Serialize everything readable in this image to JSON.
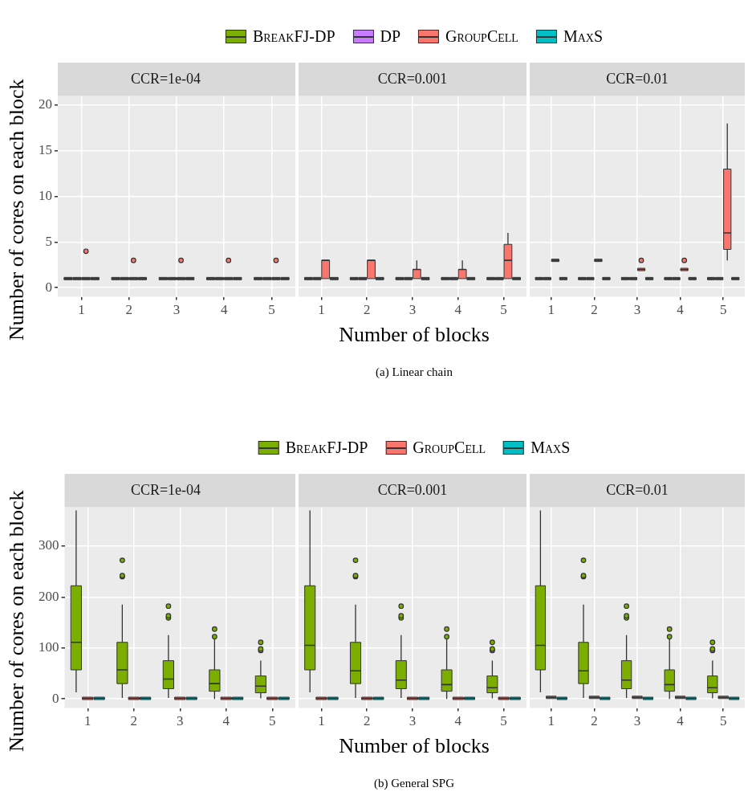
{
  "chart_data": [
    {
      "type": "box",
      "title": "CCR=1e-04",
      "ylabel": "Number of cores on each block",
      "categories": [
        "1",
        "2",
        "3",
        "4",
        "5"
      ],
      "ylim": [
        -1,
        21
      ],
      "yticks": [
        0,
        5,
        10,
        15,
        20
      ],
      "grid": true,
      "legend": false,
      "series": [
        {
          "color": "#7cae00",
          "boxes": [
            {
              "low": 1,
              "q1": 1,
              "median": 1,
              "q3": 1,
              "high": 1
            },
            {
              "low": 1,
              "q1": 1,
              "median": 1,
              "q3": 1,
              "high": 1
            },
            {
              "low": 1,
              "q1": 1,
              "median": 1,
              "q3": 1,
              "high": 1
            },
            {
              "low": 1,
              "q1": 1,
              "median": 1,
              "q3": 1,
              "high": 1
            },
            {
              "low": 1,
              "q1": 1,
              "median": 1,
              "q3": 1,
              "high": 1
            }
          ]
        },
        {
          "color": "#c77cff",
          "boxes": [
            {
              "low": 1,
              "q1": 1,
              "median": 1,
              "q3": 1,
              "high": 1
            },
            {
              "low": 1,
              "q1": 1,
              "median": 1,
              "q3": 1,
              "high": 1
            },
            {
              "low": 1,
              "q1": 1,
              "median": 1,
              "q3": 1,
              "high": 1
            },
            {
              "low": 1,
              "q1": 1,
              "median": 1,
              "q3": 1,
              "high": 1
            },
            {
              "low": 1,
              "q1": 1,
              "median": 1,
              "q3": 1,
              "high": 1
            }
          ]
        },
        {
          "color": "#f8766d",
          "boxes": [
            {
              "low": 1,
              "q1": 1,
              "median": 1,
              "q3": 1,
              "high": 1,
              "outliers": [
                4
              ]
            },
            {
              "low": 1,
              "q1": 1,
              "median": 1,
              "q3": 1,
              "high": 1,
              "outliers": [
                3
              ]
            },
            {
              "low": 1,
              "q1": 1,
              "median": 1,
              "q3": 1,
              "high": 1,
              "outliers": [
                3
              ]
            },
            {
              "low": 1,
              "q1": 1,
              "median": 1,
              "q3": 1,
              "high": 1,
              "outliers": [
                3
              ]
            },
            {
              "low": 1,
              "q1": 1,
              "median": 1,
              "q3": 1,
              "high": 1,
              "outliers": [
                3
              ]
            }
          ]
        },
        {
          "color": "#00bfc4",
          "boxes": [
            {
              "low": 1,
              "q1": 1,
              "median": 1,
              "q3": 1,
              "high": 1
            },
            {
              "low": 1,
              "q1": 1,
              "median": 1,
              "q3": 1,
              "high": 1
            },
            {
              "low": 1,
              "q1": 1,
              "median": 1,
              "q3": 1,
              "high": 1
            },
            {
              "low": 1,
              "q1": 1,
              "median": 1,
              "q3": 1,
              "high": 1
            },
            {
              "low": 1,
              "q1": 1,
              "median": 1,
              "q3": 1,
              "high": 1
            }
          ]
        }
      ]
    },
    {
      "type": "box",
      "title": "CCR=0.001",
      "xlabel": "Number of blocks",
      "annotations": [
        "(a) Linear chain"
      ],
      "categories": [
        "1",
        "2",
        "3",
        "4",
        "5"
      ],
      "ylim": [
        -1,
        21
      ],
      "yticks": [
        0,
        5,
        10,
        15,
        20
      ],
      "grid": true,
      "legend": "top",
      "tick_labels": "x",
      "series": [
        {
          "name": "BreakFJ-DP",
          "color": "#7cae00",
          "boxes": [
            {
              "low": 1,
              "q1": 1,
              "median": 1,
              "q3": 1,
              "high": 1
            },
            {
              "low": 1,
              "q1": 1,
              "median": 1,
              "q3": 1,
              "high": 1
            },
            {
              "low": 1,
              "q1": 1,
              "median": 1,
              "q3": 1,
              "high": 1
            },
            {
              "low": 1,
              "q1": 1,
              "median": 1,
              "q3": 1,
              "high": 1
            },
            {
              "low": 1,
              "q1": 1,
              "median": 1,
              "q3": 1,
              "high": 1
            }
          ]
        },
        {
          "name": "DP",
          "color": "#c77cff",
          "boxes": [
            {
              "low": 1,
              "q1": 1,
              "median": 1,
              "q3": 1,
              "high": 1
            },
            {
              "low": 1,
              "q1": 1,
              "median": 1,
              "q3": 1,
              "high": 1
            },
            {
              "low": 1,
              "q1": 1,
              "median": 1,
              "q3": 1,
              "high": 1
            },
            {
              "low": 1,
              "q1": 1,
              "median": 1,
              "q3": 1,
              "high": 1
            },
            {
              "low": 1,
              "q1": 1,
              "median": 1,
              "q3": 1,
              "high": 1
            }
          ]
        },
        {
          "name": "GroupCell",
          "color": "#f8766d",
          "boxes": [
            {
              "low": 1,
              "q1": 1,
              "median": 3,
              "q3": 3,
              "high": 3
            },
            {
              "low": 1,
              "q1": 1,
              "median": 3,
              "q3": 3,
              "high": 3
            },
            {
              "low": 1,
              "q1": 1,
              "median": 2,
              "q3": 2,
              "high": 3
            },
            {
              "low": 1,
              "q1": 1,
              "median": 2,
              "q3": 2,
              "high": 3
            },
            {
              "low": 1,
              "q1": 1,
              "median": 3,
              "q3": 4.75,
              "high": 6
            }
          ]
        },
        {
          "name": "MaxS",
          "color": "#00bfc4",
          "boxes": [
            {
              "low": 1,
              "q1": 1,
              "median": 1,
              "q3": 1,
              "high": 1
            },
            {
              "low": 1,
              "q1": 1,
              "median": 1,
              "q3": 1,
              "high": 1
            },
            {
              "low": 1,
              "q1": 1,
              "median": 1,
              "q3": 1,
              "high": 1
            },
            {
              "low": 1,
              "q1": 1,
              "median": 1,
              "q3": 1,
              "high": 1
            },
            {
              "low": 1,
              "q1": 1,
              "median": 1,
              "q3": 1,
              "high": 1
            }
          ]
        }
      ]
    },
    {
      "type": "box",
      "title": "CCR=0.01",
      "categories": [
        "1",
        "2",
        "3",
        "4",
        "5"
      ],
      "ylim": [
        -1,
        21
      ],
      "yticks": [
        0,
        5,
        10,
        15,
        20
      ],
      "grid": true,
      "legend": false,
      "tick_labels": "x",
      "series": [
        {
          "color": "#7cae00",
          "boxes": [
            {
              "low": 1,
              "q1": 1,
              "median": 1,
              "q3": 1,
              "high": 1
            },
            {
              "low": 1,
              "q1": 1,
              "median": 1,
              "q3": 1,
              "high": 1
            },
            {
              "low": 1,
              "q1": 1,
              "median": 1,
              "q3": 1,
              "high": 1
            },
            {
              "low": 1,
              "q1": 1,
              "median": 1,
              "q3": 1,
              "high": 1
            },
            {
              "low": 1,
              "q1": 1,
              "median": 1,
              "q3": 1,
              "high": 1
            }
          ]
        },
        {
          "color": "#c77cff",
          "boxes": [
            {
              "low": 1,
              "q1": 1,
              "median": 1,
              "q3": 1,
              "high": 1
            },
            {
              "low": 1,
              "q1": 1,
              "median": 1,
              "q3": 1,
              "high": 1
            },
            {
              "low": 1,
              "q1": 1,
              "median": 1,
              "q3": 1,
              "high": 1
            },
            {
              "low": 1,
              "q1": 1,
              "median": 1,
              "q3": 1,
              "high": 1
            },
            {
              "low": 1,
              "q1": 1,
              "median": 1,
              "q3": 1,
              "high": 1
            }
          ]
        },
        {
          "color": "#f8766d",
          "boxes": [
            {
              "low": 3,
              "q1": 3,
              "median": 3,
              "q3": 3,
              "high": 3
            },
            {
              "low": 3,
              "q1": 3,
              "median": 3,
              "q3": 3,
              "high": 3
            },
            {
              "low": 2,
              "q1": 2,
              "median": 2,
              "q3": 2,
              "high": 2,
              "outliers": [
                3
              ]
            },
            {
              "low": 2,
              "q1": 2,
              "median": 2,
              "q3": 2,
              "high": 2,
              "outliers": [
                3
              ]
            },
            {
              "low": 3,
              "q1": 4.2,
              "median": 6,
              "q3": 13,
              "high": 18
            }
          ]
        },
        {
          "color": "#00bfc4",
          "boxes": [
            {
              "low": 1,
              "q1": 1,
              "median": 1,
              "q3": 1,
              "high": 1
            },
            {
              "low": 1,
              "q1": 1,
              "median": 1,
              "q3": 1,
              "high": 1
            },
            {
              "low": 1,
              "q1": 1,
              "median": 1,
              "q3": 1,
              "high": 1
            },
            {
              "low": 1,
              "q1": 1,
              "median": 1,
              "q3": 1,
              "high": 1
            },
            {
              "low": 1,
              "q1": 1,
              "median": 1,
              "q3": 1,
              "high": 1
            }
          ]
        }
      ]
    },
    {
      "type": "box",
      "title": "CCR=1e-04",
      "ylabel": "Number of cores on each block",
      "categories": [
        "1",
        "2",
        "3",
        "4",
        "5"
      ],
      "ylim": [
        -18,
        376
      ],
      "yticks": [
        0,
        100,
        200,
        300
      ],
      "grid": true,
      "legend": false,
      "series": [
        {
          "color": "#7cae00",
          "boxes": [
            {
              "low": 13,
              "q1": 57,
              "median": 111,
              "q3": 222,
              "high": 370
            },
            {
              "low": 2,
              "q1": 30,
              "median": 57,
              "q3": 111,
              "high": 185,
              "outliers": [
                240,
                242,
                272
              ]
            },
            {
              "low": 2,
              "q1": 20,
              "median": 39,
              "q3": 75,
              "high": 125,
              "outliers": [
                159,
                163,
                182
              ]
            },
            {
              "low": 0,
              "q1": 15,
              "median": 30,
              "q3": 57,
              "high": 119,
              "outliers": [
                122,
                137
              ]
            },
            {
              "low": 1,
              "q1": 12,
              "median": 25,
              "q3": 45,
              "high": 75,
              "outliers": [
                95,
                98,
                111
              ]
            }
          ]
        },
        {
          "color": "#f8766d",
          "boxes": [
            {
              "low": 1,
              "q1": 1,
              "median": 1,
              "q3": 1,
              "high": 1
            },
            {
              "low": 1,
              "q1": 1,
              "median": 1,
              "q3": 1,
              "high": 1
            },
            {
              "low": 1,
              "q1": 1,
              "median": 1,
              "q3": 1,
              "high": 1
            },
            {
              "low": 1,
              "q1": 1,
              "median": 1,
              "q3": 1,
              "high": 1
            },
            {
              "low": 1,
              "q1": 1,
              "median": 1,
              "q3": 1,
              "high": 1
            }
          ]
        },
        {
          "color": "#00bfc4",
          "boxes": [
            {
              "low": 1,
              "q1": 1,
              "median": 1,
              "q3": 1,
              "high": 1
            },
            {
              "low": 1,
              "q1": 1,
              "median": 1,
              "q3": 1,
              "high": 1
            },
            {
              "low": 1,
              "q1": 1,
              "median": 1,
              "q3": 1,
              "high": 1
            },
            {
              "low": 1,
              "q1": 1,
              "median": 1,
              "q3": 1,
              "high": 1
            },
            {
              "low": 1,
              "q1": 1,
              "median": 1,
              "q3": 1,
              "high": 1
            }
          ]
        }
      ]
    },
    {
      "type": "box",
      "title": "CCR=0.001",
      "xlabel": "Number of blocks",
      "annotations": [
        "(b) General SPG"
      ],
      "categories": [
        "1",
        "2",
        "3",
        "4",
        "5"
      ],
      "ylim": [
        -18,
        376
      ],
      "yticks": [
        0,
        100,
        200,
        300
      ],
      "grid": true,
      "legend": "top",
      "tick_labels": "x",
      "series": [
        {
          "name": "BreakFJ-DP",
          "color": "#7cae00",
          "boxes": [
            {
              "low": 13,
              "q1": 57,
              "median": 105,
              "q3": 222,
              "high": 370
            },
            {
              "low": 2,
              "q1": 30,
              "median": 55,
              "q3": 111,
              "high": 185,
              "outliers": [
                240,
                242,
                272
              ]
            },
            {
              "low": 2,
              "q1": 20,
              "median": 37,
              "q3": 75,
              "high": 125,
              "outliers": [
                159,
                163,
                182
              ]
            },
            {
              "low": 0,
              "q1": 15,
              "median": 28,
              "q3": 57,
              "high": 119,
              "outliers": [
                122,
                137
              ]
            },
            {
              "low": 1,
              "q1": 12,
              "median": 22,
              "q3": 45,
              "high": 75,
              "outliers": [
                95,
                98,
                111
              ]
            }
          ]
        },
        {
          "name": "GroupCell",
          "color": "#f8766d",
          "boxes": [
            {
              "low": 1,
              "q1": 1,
              "median": 1,
              "q3": 1,
              "high": 1
            },
            {
              "low": 1,
              "q1": 1,
              "median": 1,
              "q3": 1,
              "high": 1
            },
            {
              "low": 1,
              "q1": 1,
              "median": 1,
              "q3": 1,
              "high": 1
            },
            {
              "low": 1,
              "q1": 1,
              "median": 1,
              "q3": 1,
              "high": 1
            },
            {
              "low": 1,
              "q1": 1,
              "median": 1,
              "q3": 1,
              "high": 1
            }
          ]
        },
        {
          "name": "MaxS",
          "color": "#00bfc4",
          "boxes": [
            {
              "low": 1,
              "q1": 1,
              "median": 1,
              "q3": 1,
              "high": 1
            },
            {
              "low": 1,
              "q1": 1,
              "median": 1,
              "q3": 1,
              "high": 1
            },
            {
              "low": 1,
              "q1": 1,
              "median": 1,
              "q3": 1,
              "high": 1
            },
            {
              "low": 1,
              "q1": 1,
              "median": 1,
              "q3": 1,
              "high": 1
            },
            {
              "low": 1,
              "q1": 1,
              "median": 1,
              "q3": 1,
              "high": 1
            }
          ]
        }
      ]
    },
    {
      "type": "box",
      "title": "CCR=0.01",
      "categories": [
        "1",
        "2",
        "3",
        "4",
        "5"
      ],
      "ylim": [
        -18,
        376
      ],
      "yticks": [
        0,
        100,
        200,
        300
      ],
      "grid": true,
      "legend": false,
      "tick_labels": "x",
      "series": [
        {
          "color": "#7cae00",
          "boxes": [
            {
              "low": 13,
              "q1": 57,
              "median": 105,
              "q3": 222,
              "high": 370
            },
            {
              "low": 2,
              "q1": 30,
              "median": 55,
              "q3": 111,
              "high": 185,
              "outliers": [
                240,
                242,
                272
              ]
            },
            {
              "low": 2,
              "q1": 20,
              "median": 37,
              "q3": 75,
              "high": 125,
              "outliers": [
                159,
                163,
                182
              ]
            },
            {
              "low": 0,
              "q1": 15,
              "median": 28,
              "q3": 57,
              "high": 119,
              "outliers": [
                122,
                137
              ]
            },
            {
              "low": 1,
              "q1": 12,
              "median": 22,
              "q3": 45,
              "high": 75,
              "outliers": [
                95,
                98,
                111
              ]
            }
          ]
        },
        {
          "color": "#f8766d",
          "boxes": [
            {
              "low": 3,
              "q1": 3,
              "median": 3,
              "q3": 3,
              "high": 3
            },
            {
              "low": 3,
              "q1": 3,
              "median": 3,
              "q3": 3,
              "high": 3
            },
            {
              "low": 3,
              "q1": 3,
              "median": 3,
              "q3": 3,
              "high": 3
            },
            {
              "low": 3,
              "q1": 3,
              "median": 3,
              "q3": 3,
              "high": 3
            },
            {
              "low": 3,
              "q1": 3,
              "median": 3,
              "q3": 3,
              "high": 3
            }
          ]
        },
        {
          "color": "#00bfc4",
          "boxes": [
            {
              "low": 1,
              "q1": 1,
              "median": 1,
              "q3": 1,
              "high": 1
            },
            {
              "low": 1,
              "q1": 1,
              "median": 1,
              "q3": 1,
              "high": 1
            },
            {
              "low": 1,
              "q1": 1,
              "median": 1,
              "q3": 1,
              "high": 1
            },
            {
              "low": 1,
              "q1": 1,
              "median": 1,
              "q3": 1,
              "high": 1
            },
            {
              "low": 1,
              "q1": 1,
              "median": 1,
              "q3": 1,
              "high": 1
            }
          ]
        }
      ]
    }
  ]
}
